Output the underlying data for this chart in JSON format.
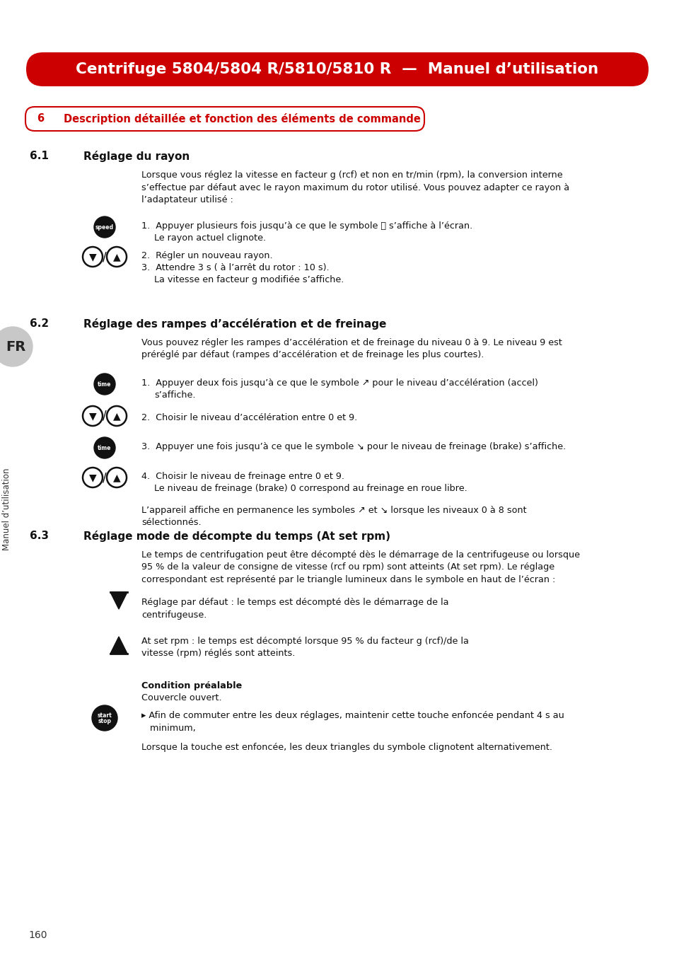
{
  "page_bg": "#ffffff",
  "header_bg": "#cc0000",
  "header_text": "Centrifuge 5804/5804 R/5810/5810 R  —  Manuel d’utilisation",
  "header_text_color": "#ffffff",
  "section_box_color": "#cc0000",
  "section_num": "6",
  "section_title": "Description détaillée et fonction des éléments de commande",
  "section_title_color": "#cc0000",
  "left_sidebar_text": "Manuel d’utilisation",
  "left_sidebar_lang": "FR",
  "page_number": "160",
  "s1_num": "6.1",
  "s1_title": "Réglage du rayon",
  "s1_intro": "Lorsque vous réglez la vitesse en facteur g (rcf) et non en tr/min (rpm), la conversion interne\ns’effectue par défaut avec le rayon maximum du rotor utilisé. Vous pouvez adapter ce rayon à\nl’adaptateur utilisé :",
  "s1_step1": "1.  Appuyer plusieurs fois jusqu’à ce que le symbole ⓖ s’affiche à l’écran.",
  "s1_step1b": "Le rayon actuel clignote.",
  "s1_step2": "2.  Régler un nouveau rayon.",
  "s1_step3": "3.  Attendre 3 s ( à l’arrêt du rotor : 10 s).",
  "s1_step3b": "La vitesse en facteur g modifiée s’affiche.",
  "s2_num": "6.2",
  "s2_title": "Réglage des rampes d’accélération et de freinage",
  "s2_intro": "Vous pouvez régler les rampes d’accélération et de freinage du niveau 0 à 9. Le niveau 9 est\npréréglé par défaut (rampes d’accélération et de freinage les plus courtes).",
  "s2_step1": "1.  Appuyer deux fois jusqu’à ce que le symbole ↗ pour le niveau d’accélération (accel)",
  "s2_step1b": "s’affiche.",
  "s2_step2": "2.  Choisir le niveau d’accélération entre 0 et 9.",
  "s2_step3": "3.  Appuyer une fois jusqu’à ce que le symbole ↘ pour le niveau de freinage (brake) s’affiche.",
  "s2_step4": "4.  Choisir le niveau de freinage entre 0 et 9.",
  "s2_step4b": "Le niveau de freinage (brake) 0 correspond au freinage en roue libre.",
  "s2_footer": "L’appareil affiche en permanence les symboles ↗ et ↘ lorsque les niveaux 0 à 8 sont\nsélectionnés.",
  "s3_num": "6.3",
  "s3_title": "Réglage mode de décompte du temps (At set rpm)",
  "s3_intro": "Le temps de centrifugation peut être décompté dès le démarrage de la centrifugeuse ou lorsque\n95 % de la valeur de consigne de vitesse (rcf ou rpm) sont atteints (At set rpm). Le réglage\ncorrespondant est représenté par le triangle lumineux dans le symbole en haut de l’écran :",
  "s3_tri1": "Réglage par défaut : le temps est décompté dès le démarrage de la\ncentrifugeuse.",
  "s3_tri2": "At set rpm : le temps est décompté lorsque 95 % du facteur g (rcf)/de la\nvitesse (rpm) réglés sont atteints.",
  "s3_cond_title": "Condition préalable",
  "s3_cond_text": "Couvercle ouvert.",
  "s3_final": "▸ Afin de commuter entre les deux réglages, maintenir cette touche enfoncée pendant 4 s au\n   minimum,",
  "s3_footer": "Lorsque la touche est enfoncée, les deux triangles du symbole clignotent alternativement."
}
